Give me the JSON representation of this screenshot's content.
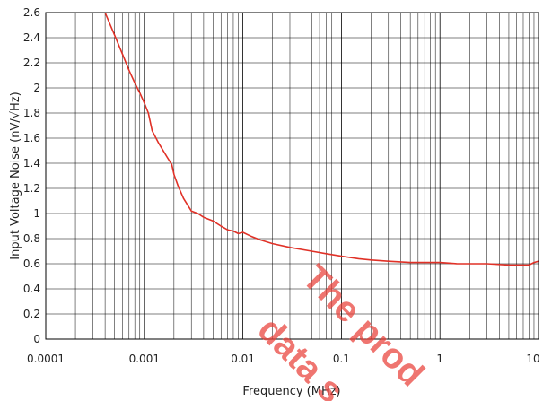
{
  "chart_data": {
    "type": "line",
    "title": "",
    "xlabel": "Frequency (MHz)",
    "ylabel": "Input Voltage Noise (nV/√Hz)",
    "xscale": "log",
    "xlim": [
      0.0001,
      10
    ],
    "ylim": [
      0,
      2.6
    ],
    "grid": true,
    "x_ticks": [
      "0.0001",
      "0.001",
      "0.01",
      "0.1",
      "1",
      "10"
    ],
    "y_ticks": [
      "0",
      "0.2",
      "0.4",
      "0.6",
      "0.8",
      "1",
      "1.2",
      "1.4",
      "1.6",
      "1.8",
      "2",
      "2.2",
      "2.4",
      "2.6"
    ],
    "series": [
      {
        "color": "#e03127",
        "x": [
          0.0004,
          0.0005,
          0.0006,
          0.0007,
          0.0008,
          0.0009,
          0.001,
          0.0011,
          0.0012,
          0.0014,
          0.0017,
          0.0019,
          0.002,
          0.0022,
          0.0025,
          0.003,
          0.0035,
          0.004,
          0.005,
          0.006,
          0.007,
          0.008,
          0.009,
          0.01,
          0.012,
          0.015,
          0.02,
          0.03,
          0.05,
          0.07,
          0.1,
          0.15,
          0.2,
          0.3,
          0.5,
          0.7,
          1,
          1.5,
          2,
          3,
          5,
          7,
          8,
          9,
          10
        ],
        "y": [
          2.6,
          2.42,
          2.27,
          2.14,
          2.04,
          1.96,
          1.88,
          1.8,
          1.66,
          1.56,
          1.45,
          1.39,
          1.31,
          1.22,
          1.12,
          1.02,
          1.0,
          0.97,
          0.94,
          0.9,
          0.87,
          0.86,
          0.84,
          0.85,
          0.82,
          0.79,
          0.76,
          0.73,
          0.7,
          0.68,
          0.66,
          0.64,
          0.63,
          0.62,
          0.61,
          0.61,
          0.61,
          0.6,
          0.6,
          0.6,
          0.59,
          0.59,
          0.59,
          0.61,
          0.62
        ]
      }
    ]
  },
  "watermark": {
    "line1": "The prod",
    "line2": "data s"
  }
}
